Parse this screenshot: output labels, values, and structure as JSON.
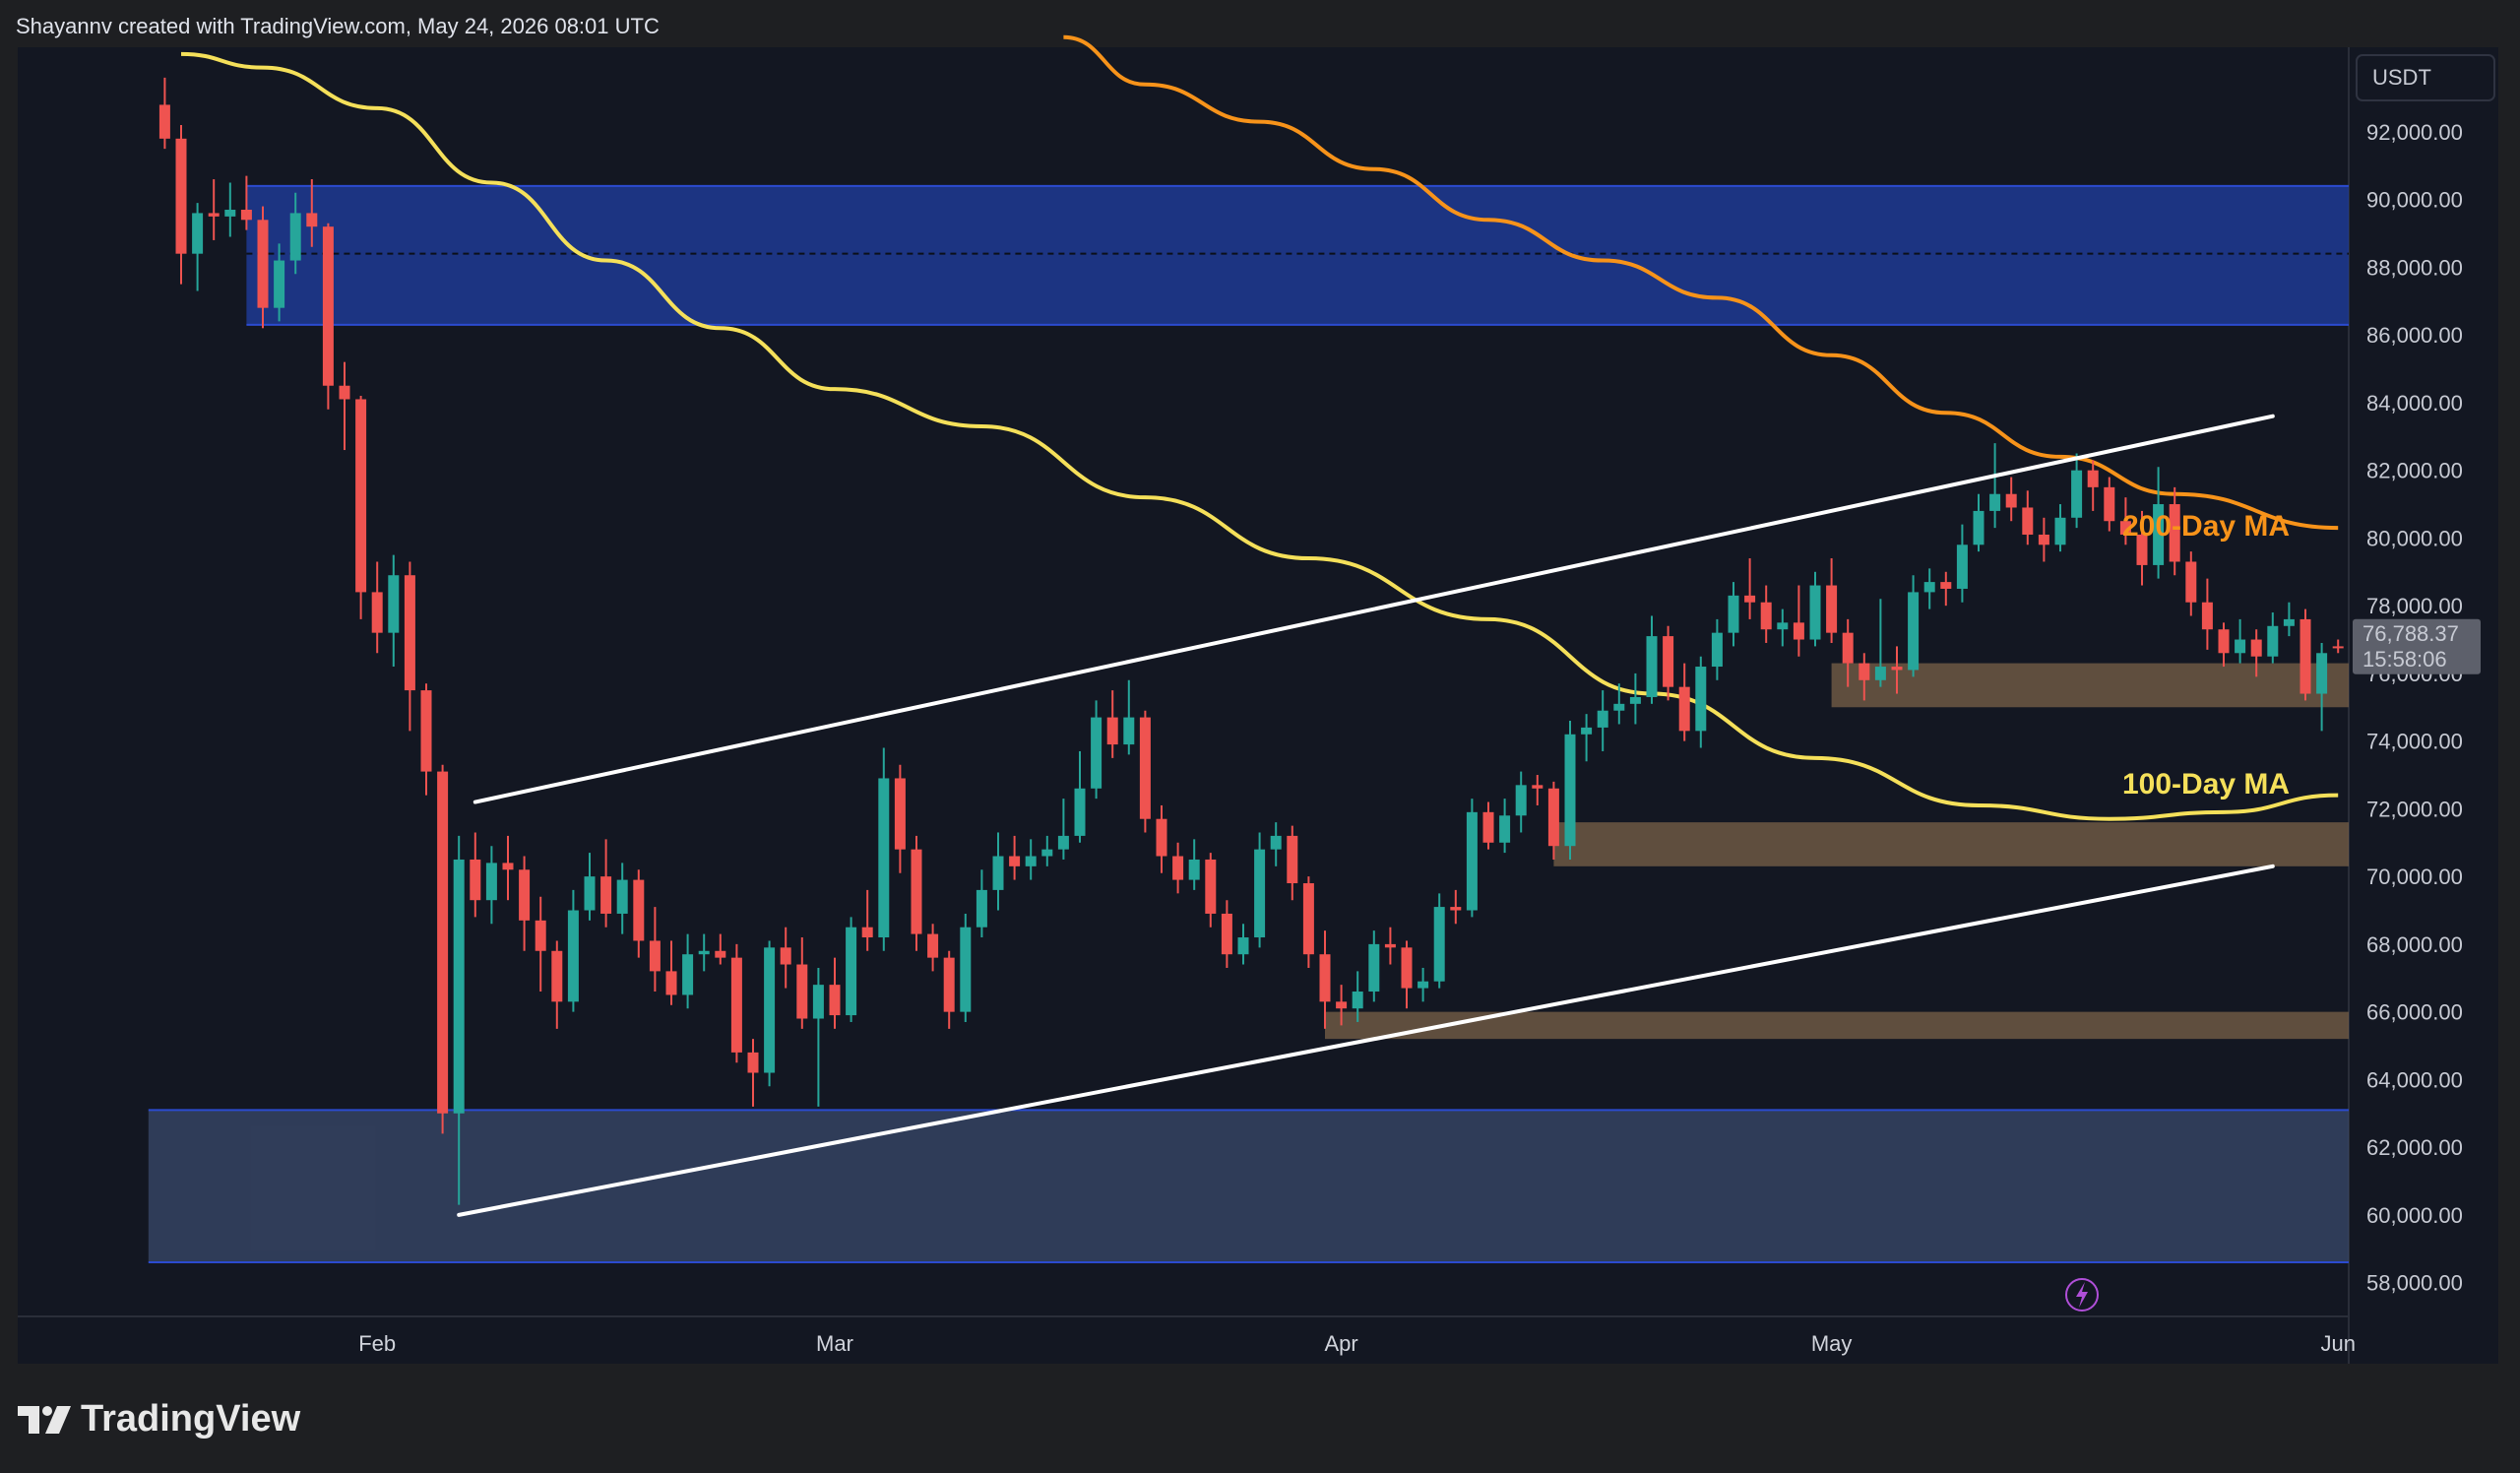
{
  "header": {
    "attribution": "Shayannv created with TradingView.com, May 24, 2026 08:01 UTC"
  },
  "footer": {
    "brand": "TradingView"
  },
  "colors": {
    "background": "#131722",
    "up": "#26a69a",
    "down": "#ef5350",
    "ma100": "#f5e05a",
    "ma200": "#f7931a",
    "supply_zone": "#1f3a93",
    "demand_zone": "#7a6248",
    "lower_zone": "#3a4a6b",
    "channel": "#ffffff"
  },
  "chart_data": {
    "type": "candlestick",
    "currency_label": "USDT",
    "ylim": [
      57000,
      94500
    ],
    "y_ticks": [
      58000,
      60000,
      62000,
      64000,
      66000,
      68000,
      70000,
      72000,
      74000,
      76000,
      78000,
      80000,
      82000,
      84000,
      86000,
      88000,
      90000,
      92000
    ],
    "y_tick_labels": [
      "58,000.00",
      "60,000.00",
      "62,000.00",
      "64,000.00",
      "66,000.00",
      "68,000.00",
      "70,000.00",
      "72,000.00",
      "74,000.00",
      "76,000.00",
      "78,000.00",
      "80,000.00",
      "82,000.00",
      "84,000.00",
      "86,000.00",
      "88,000.00",
      "90,000.00",
      "92,000.00"
    ],
    "x_labels": [
      {
        "label": "Feb",
        "date": "2026-02-01"
      },
      {
        "label": "Mar",
        "date": "2026-03-01"
      },
      {
        "label": "Apr",
        "date": "2026-04-01"
      },
      {
        "label": "May",
        "date": "2026-05-01"
      },
      {
        "label": "Jun",
        "date": "2026-06-01"
      }
    ],
    "current_price": {
      "value": 76788.37,
      "label": "76,788.37",
      "countdown": "15:58:06"
    },
    "candles": [
      [
        "2026-01-19",
        92800,
        93600,
        91500,
        91800
      ],
      [
        "2026-01-20",
        91800,
        92200,
        87500,
        88400
      ],
      [
        "2026-01-21",
        88400,
        89900,
        87300,
        89600
      ],
      [
        "2026-01-22",
        89600,
        90600,
        88800,
        89500
      ],
      [
        "2026-01-23",
        89500,
        90500,
        88900,
        89700
      ],
      [
        "2026-01-24",
        89700,
        90700,
        89100,
        89400
      ],
      [
        "2026-01-25",
        89400,
        89800,
        86200,
        86800
      ],
      [
        "2026-01-26",
        86800,
        88700,
        86400,
        88200
      ],
      [
        "2026-01-27",
        88200,
        90200,
        87800,
        89600
      ],
      [
        "2026-01-28",
        89600,
        90600,
        88600,
        89200
      ],
      [
        "2026-01-29",
        89200,
        89300,
        83800,
        84500
      ],
      [
        "2026-01-30",
        84500,
        85200,
        82600,
        84100
      ],
      [
        "2026-01-31",
        84100,
        84200,
        77600,
        78400
      ],
      [
        "2026-02-01",
        78400,
        79300,
        76600,
        77200
      ],
      [
        "2026-02-02",
        77200,
        79500,
        76200,
        78900
      ],
      [
        "2026-02-03",
        78900,
        79300,
        74300,
        75500
      ],
      [
        "2026-02-04",
        75500,
        75700,
        72400,
        73100
      ],
      [
        "2026-02-05",
        73100,
        73300,
        62400,
        63000
      ],
      [
        "2026-02-06",
        63000,
        71200,
        60300,
        70500
      ],
      [
        "2026-02-07",
        70500,
        71300,
        68800,
        69300
      ],
      [
        "2026-02-08",
        69300,
        70900,
        68600,
        70400
      ],
      [
        "2026-02-09",
        70400,
        71200,
        69300,
        70200
      ],
      [
        "2026-02-10",
        70200,
        70600,
        67800,
        68700
      ],
      [
        "2026-02-11",
        68700,
        69400,
        66600,
        67800
      ],
      [
        "2026-02-12",
        67800,
        68100,
        65500,
        66300
      ],
      [
        "2026-02-13",
        66300,
        69600,
        66000,
        69000
      ],
      [
        "2026-02-14",
        69000,
        70700,
        68700,
        70000
      ],
      [
        "2026-02-15",
        70000,
        71100,
        68500,
        68900
      ],
      [
        "2026-02-16",
        68900,
        70400,
        68300,
        69900
      ],
      [
        "2026-02-17",
        69900,
        70200,
        67600,
        68100
      ],
      [
        "2026-02-18",
        68100,
        69100,
        66600,
        67200
      ],
      [
        "2026-02-19",
        67200,
        68100,
        66200,
        66500
      ],
      [
        "2026-02-20",
        66500,
        68300,
        66100,
        67700
      ],
      [
        "2026-02-21",
        67700,
        68300,
        67200,
        67800
      ],
      [
        "2026-02-22",
        67800,
        68300,
        67400,
        67600
      ],
      [
        "2026-02-23",
        67600,
        68000,
        64500,
        64800
      ],
      [
        "2026-02-24",
        64800,
        65200,
        63200,
        64200
      ],
      [
        "2026-02-25",
        64200,
        68100,
        63800,
        67900
      ],
      [
        "2026-02-26",
        67900,
        68500,
        66700,
        67400
      ],
      [
        "2026-02-27",
        67400,
        68200,
        65500,
        65800
      ],
      [
        "2026-02-28",
        65800,
        67300,
        63200,
        66800
      ],
      [
        "2026-03-01",
        66800,
        67600,
        65500,
        65900
      ],
      [
        "2026-03-02",
        65900,
        68800,
        65700,
        68500
      ],
      [
        "2026-03-03",
        68500,
        69600,
        67800,
        68200
      ],
      [
        "2026-03-04",
        68200,
        73800,
        67800,
        72900
      ],
      [
        "2026-03-05",
        72900,
        73300,
        70100,
        70800
      ],
      [
        "2026-03-06",
        70800,
        71200,
        67800,
        68300
      ],
      [
        "2026-03-07",
        68300,
        68600,
        67200,
        67600
      ],
      [
        "2026-03-08",
        67600,
        67800,
        65500,
        66000
      ],
      [
        "2026-03-09",
        66000,
        68900,
        65700,
        68500
      ],
      [
        "2026-03-10",
        68500,
        70200,
        68200,
        69600
      ],
      [
        "2026-03-11",
        69600,
        71300,
        69000,
        70600
      ],
      [
        "2026-03-12",
        70600,
        71200,
        69900,
        70300
      ],
      [
        "2026-03-13",
        70300,
        71100,
        69900,
        70600
      ],
      [
        "2026-03-14",
        70600,
        71200,
        70300,
        70800
      ],
      [
        "2026-03-15",
        70800,
        72300,
        70500,
        71200
      ],
      [
        "2026-03-16",
        71200,
        73700,
        71000,
        72600
      ],
      [
        "2026-03-17",
        72600,
        75200,
        72300,
        74700
      ],
      [
        "2026-03-18",
        74700,
        75500,
        73500,
        73900
      ],
      [
        "2026-03-19",
        73900,
        75800,
        73600,
        74700
      ],
      [
        "2026-03-20",
        74700,
        74900,
        71300,
        71700
      ],
      [
        "2026-03-21",
        71700,
        72100,
        70100,
        70600
      ],
      [
        "2026-03-22",
        70600,
        71000,
        69500,
        69900
      ],
      [
        "2026-03-23",
        69900,
        71100,
        69600,
        70500
      ],
      [
        "2026-03-24",
        70500,
        70700,
        68500,
        68900
      ],
      [
        "2026-03-25",
        68900,
        69300,
        67300,
        67700
      ],
      [
        "2026-03-26",
        67700,
        68600,
        67400,
        68200
      ],
      [
        "2026-03-27",
        68200,
        71300,
        67900,
        70800
      ],
      [
        "2026-03-28",
        70800,
        71600,
        70300,
        71200
      ],
      [
        "2026-03-29",
        71200,
        71500,
        69300,
        69800
      ],
      [
        "2026-03-30",
        69800,
        70000,
        67300,
        67700
      ],
      [
        "2026-03-31",
        67700,
        68400,
        65500,
        66300
      ],
      [
        "2026-04-01",
        66300,
        66800,
        65600,
        66100
      ],
      [
        "2026-04-02",
        66100,
        67200,
        65700,
        66600
      ],
      [
        "2026-04-03",
        66600,
        68400,
        66300,
        68000
      ],
      [
        "2026-04-04",
        68000,
        68500,
        67400,
        67900
      ],
      [
        "2026-04-05",
        67900,
        68100,
        66100,
        66700
      ],
      [
        "2026-04-06",
        66700,
        67300,
        66300,
        66900
      ],
      [
        "2026-04-07",
        66900,
        69500,
        66700,
        69100
      ],
      [
        "2026-04-08",
        69100,
        69600,
        68600,
        69000
      ],
      [
        "2026-04-09",
        69000,
        72300,
        68800,
        71900
      ],
      [
        "2026-04-10",
        71900,
        72200,
        70800,
        71000
      ],
      [
        "2026-04-11",
        71000,
        72300,
        70700,
        71800
      ],
      [
        "2026-04-12",
        71800,
        73100,
        71300,
        72700
      ],
      [
        "2026-04-13",
        72700,
        73000,
        72100,
        72600
      ],
      [
        "2026-04-14",
        72600,
        72800,
        70500,
        70900
      ],
      [
        "2026-04-15",
        70900,
        74600,
        70500,
        74200
      ],
      [
        "2026-04-16",
        74200,
        74800,
        73400,
        74400
      ],
      [
        "2026-04-17",
        74400,
        75500,
        73700,
        74900
      ],
      [
        "2026-04-18",
        74900,
        75700,
        74500,
        75100
      ],
      [
        "2026-04-19",
        75100,
        76000,
        74500,
        75300
      ],
      [
        "2026-04-20",
        75300,
        77700,
        75100,
        77100
      ],
      [
        "2026-04-21",
        77100,
        77400,
        75200,
        75600
      ],
      [
        "2026-04-22",
        75600,
        76300,
        74000,
        74300
      ],
      [
        "2026-04-23",
        74300,
        76500,
        73800,
        76200
      ],
      [
        "2026-04-24",
        76200,
        77600,
        75800,
        77200
      ],
      [
        "2026-04-25",
        77200,
        78700,
        76800,
        78300
      ],
      [
        "2026-04-26",
        78300,
        79400,
        77600,
        78100
      ],
      [
        "2026-04-27",
        78100,
        78600,
        76900,
        77300
      ],
      [
        "2026-04-28",
        77300,
        77900,
        76800,
        77500
      ],
      [
        "2026-04-29",
        77500,
        78600,
        76500,
        77000
      ],
      [
        "2026-04-30",
        77000,
        79000,
        76800,
        78600
      ],
      [
        "2026-05-01",
        78600,
        79400,
        76900,
        77200
      ],
      [
        "2026-05-02",
        77200,
        77600,
        75600,
        76300
      ],
      [
        "2026-05-03",
        76300,
        76600,
        75200,
        75800
      ],
      [
        "2026-05-04",
        75800,
        78200,
        75600,
        76200
      ],
      [
        "2026-05-05",
        76200,
        76800,
        75400,
        76100
      ],
      [
        "2026-05-06",
        76100,
        78900,
        75900,
        78400
      ],
      [
        "2026-05-07",
        78400,
        79100,
        77900,
        78700
      ],
      [
        "2026-05-08",
        78700,
        79000,
        78000,
        78500
      ],
      [
        "2026-05-09",
        78500,
        80400,
        78100,
        79800
      ],
      [
        "2026-05-10",
        79800,
        81300,
        79600,
        80800
      ],
      [
        "2026-05-11",
        80800,
        82800,
        80300,
        81300
      ],
      [
        "2026-05-12",
        81300,
        81800,
        80500,
        80900
      ],
      [
        "2026-05-13",
        80900,
        81400,
        79800,
        80100
      ],
      [
        "2026-05-14",
        80100,
        80600,
        79300,
        79800
      ],
      [
        "2026-05-15",
        79800,
        81000,
        79600,
        80600
      ],
      [
        "2026-05-16",
        80600,
        82500,
        80300,
        82000
      ],
      [
        "2026-05-17",
        82000,
        82300,
        80800,
        81500
      ],
      [
        "2026-05-18",
        81500,
        81800,
        80200,
        80500
      ],
      [
        "2026-05-19",
        80500,
        81200,
        79800,
        80100
      ],
      [
        "2026-05-20",
        80100,
        80800,
        78600,
        79200
      ],
      [
        "2026-05-21",
        79200,
        82100,
        78800,
        81000
      ],
      [
        "2026-05-22",
        81000,
        81500,
        78900,
        79300
      ],
      [
        "2026-05-23",
        79300,
        79600,
        77700,
        78100
      ],
      [
        "2026-05-24",
        78100,
        78800,
        76700,
        77300
      ],
      [
        "2026-05-25",
        77300,
        77500,
        76200,
        76600
      ],
      [
        "2026-05-26",
        76600,
        77600,
        76300,
        77000
      ],
      [
        "2026-05-27",
        77000,
        77300,
        75900,
        76500
      ],
      [
        "2026-05-28",
        76500,
        77800,
        76300,
        77400
      ],
      [
        "2026-05-29",
        77400,
        78100,
        77100,
        77600
      ],
      [
        "2026-05-30",
        77600,
        77900,
        75200,
        75400
      ],
      [
        "2026-05-31",
        75400,
        76900,
        74300,
        76600
      ],
      [
        "2026-06-01",
        76800,
        77000,
        76600,
        76788.37
      ]
    ],
    "zones": [
      {
        "name": "supply-zone",
        "from": 86300,
        "to": 90400,
        "start": "2026-01-24",
        "midline": 88400,
        "color": "#1f3a93"
      },
      {
        "name": "demand-zone-upper",
        "from": 75000,
        "to": 76300,
        "start": "2026-05-01",
        "color": "#7a6248"
      },
      {
        "name": "demand-zone-mid",
        "from": 70300,
        "to": 71600,
        "start": "2026-04-14",
        "color": "#7a6248"
      },
      {
        "name": "demand-zone-lower",
        "from": 65200,
        "to": 66000,
        "start": "2026-03-31",
        "color": "#7a6248"
      },
      {
        "name": "lower-support-zone",
        "from": 58600,
        "to": 63100,
        "start": "2026-01-18",
        "color": "#3a4a6b"
      }
    ],
    "channel_lines": [
      {
        "name": "channel-upper-line",
        "from": [
          "2026-02-07",
          72200
        ],
        "to": [
          "2026-05-28",
          83600
        ]
      },
      {
        "name": "channel-lower-line",
        "from": [
          "2026-02-06",
          60000
        ],
        "to": [
          "2026-05-28",
          70300
        ]
      }
    ],
    "moving_averages": [
      {
        "name": "200-Day MA",
        "color": "#f7931a",
        "points": [
          [
            "2026-03-15",
            94800
          ],
          [
            "2026-03-20",
            93400
          ],
          [
            "2026-03-27",
            92300
          ],
          [
            "2026-04-03",
            90900
          ],
          [
            "2026-04-10",
            89400
          ],
          [
            "2026-04-17",
            88200
          ],
          [
            "2026-04-24",
            87100
          ],
          [
            "2026-05-01",
            85400
          ],
          [
            "2026-05-08",
            83700
          ],
          [
            "2026-05-15",
            82400
          ],
          [
            "2026-05-22",
            81300
          ],
          [
            "2026-06-01",
            80300
          ]
        ]
      },
      {
        "name": "100-Day MA",
        "color": "#f5e05a",
        "points": [
          [
            "2026-01-20",
            94300
          ],
          [
            "2026-01-25",
            93900
          ],
          [
            "2026-02-01",
            92700
          ],
          [
            "2026-02-08",
            90500
          ],
          [
            "2026-02-15",
            88200
          ],
          [
            "2026-02-22",
            86200
          ],
          [
            "2026-03-01",
            84400
          ],
          [
            "2026-03-10",
            83300
          ],
          [
            "2026-03-20",
            81200
          ],
          [
            "2026-03-30",
            79400
          ],
          [
            "2026-04-10",
            77600
          ],
          [
            "2026-04-20",
            75400
          ],
          [
            "2026-04-30",
            73500
          ],
          [
            "2026-05-10",
            72100
          ],
          [
            "2026-05-18",
            71700
          ],
          [
            "2026-05-25",
            71900
          ],
          [
            "2026-06-01",
            72400
          ]
        ]
      }
    ]
  }
}
